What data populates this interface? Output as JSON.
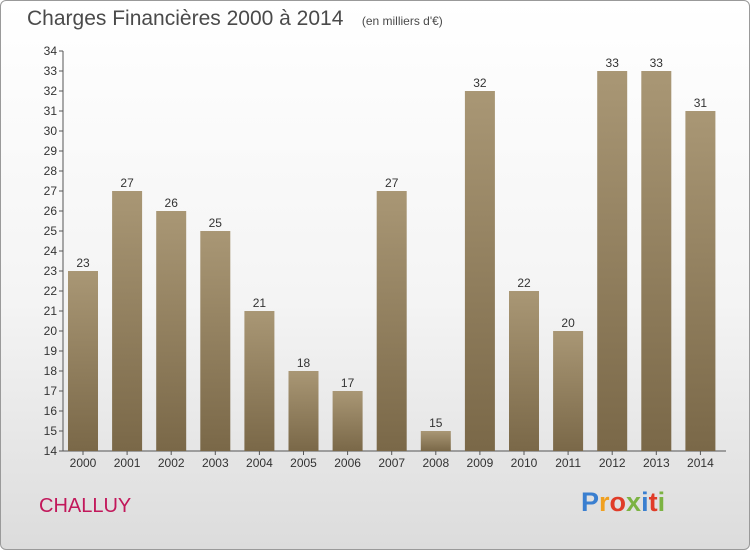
{
  "chart_data": {
    "type": "bar",
    "title": "Charges Financières 2000 à 2014",
    "subtitle": "(en milliers d'€)",
    "categories": [
      "2000",
      "2001",
      "2002",
      "2003",
      "2004",
      "2005",
      "2006",
      "2007",
      "2008",
      "2009",
      "2010",
      "2011",
      "2012",
      "2013",
      "2014"
    ],
    "values": [
      23,
      27,
      26,
      25,
      21,
      18,
      17,
      27,
      15,
      32,
      22,
      20,
      33,
      33,
      31
    ],
    "ylim": [
      14,
      34
    ],
    "yticks": [
      14,
      15,
      16,
      17,
      18,
      19,
      20,
      21,
      22,
      23,
      24,
      25,
      26,
      27,
      28,
      29,
      30,
      31,
      32,
      33,
      34
    ],
    "xlabel": "",
    "ylabel": "",
    "grid": false,
    "bar_color_top": "#a99775",
    "bar_color_bottom": "#7a6848"
  },
  "footer": {
    "place_name": "CHALLUY",
    "place_color": "#c2185b",
    "brand": [
      "P",
      "r",
      "o",
      "x",
      "i",
      "t",
      "i"
    ],
    "brand_colors": [
      "#3a7fd0",
      "#f0a020",
      "#e03c28",
      "#7cb342",
      "#3a7fd0",
      "#e03c28",
      "#7cb342"
    ]
  }
}
